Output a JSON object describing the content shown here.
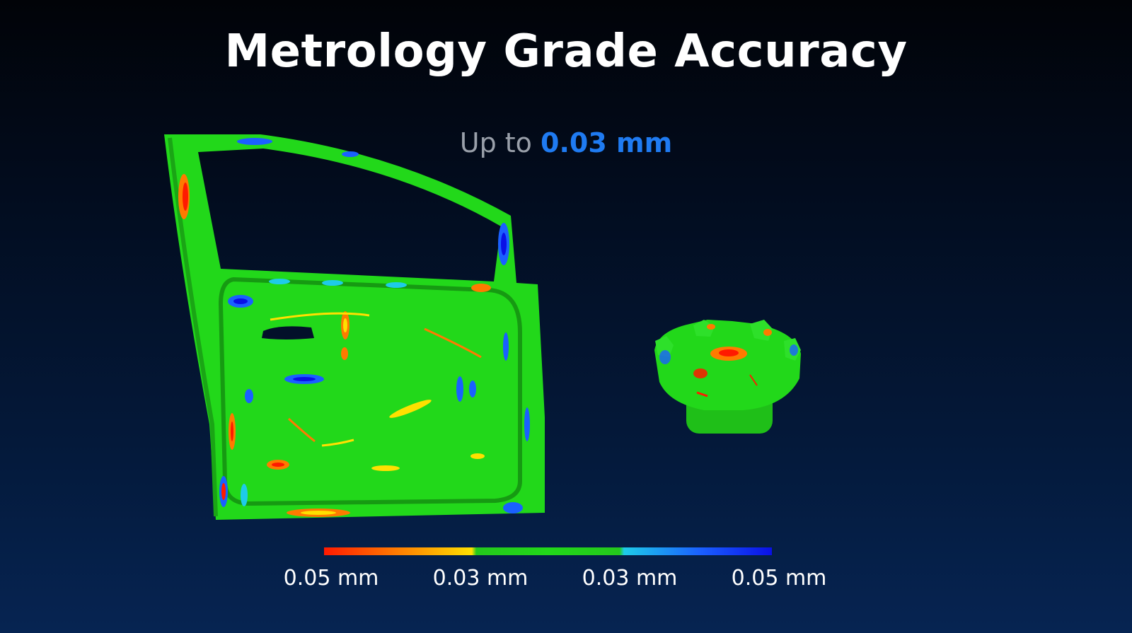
{
  "slide": {
    "title": "Metrology Grade Accuracy",
    "subtitle_prefix": "Up to",
    "subtitle_value": "0.03 mm"
  },
  "colors": {
    "accent": "#1f7bf2",
    "surface_green": "#22d81a",
    "deviation_red": "#ff1a00",
    "deviation_yellow": "#ffe000",
    "deviation_cyan": "#1ecbe8",
    "deviation_blue": "#0a10e6"
  },
  "legend": {
    "labels": [
      "0.05 mm",
      "0.03 mm",
      "0.03 mm",
      "0.05 mm"
    ]
  }
}
